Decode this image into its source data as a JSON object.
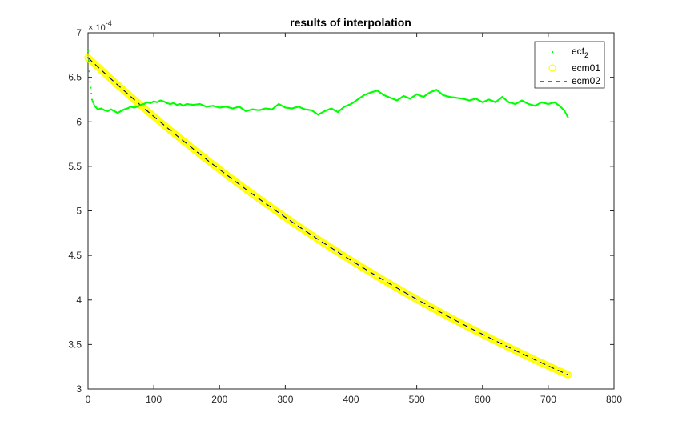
{
  "chart_data": {
    "type": "line",
    "title": "results of interpolation",
    "xlabel": "",
    "ylabel": "",
    "xlim": [
      0,
      800
    ],
    "ylim": [
      3,
      7
    ],
    "y_exponent_label": "× 10",
    "y_exponent_value": "-4",
    "x_ticks": [
      0,
      100,
      200,
      300,
      400,
      500,
      600,
      700,
      800
    ],
    "y_ticks": [
      3,
      3.5,
      4,
      4.5,
      5,
      5.5,
      6,
      6.5,
      7
    ],
    "grid": false,
    "legend_position": "top-right",
    "series": [
      {
        "name": "ecf",
        "name_subscript": "2",
        "style": "dots",
        "color": "#00ff00",
        "x": [
          0,
          3,
          6,
          10,
          15,
          20,
          25,
          30,
          35,
          40,
          45,
          50,
          55,
          60,
          65,
          70,
          75,
          80,
          85,
          90,
          95,
          100,
          105,
          110,
          115,
          120,
          125,
          130,
          135,
          140,
          145,
          150,
          160,
          170,
          180,
          190,
          200,
          210,
          220,
          230,
          240,
          250,
          260,
          270,
          280,
          290,
          300,
          310,
          320,
          330,
          340,
          350,
          360,
          370,
          380,
          390,
          400,
          410,
          420,
          430,
          440,
          450,
          460,
          470,
          480,
          490,
          500,
          510,
          520,
          530,
          540,
          550,
          560,
          570,
          580,
          590,
          600,
          610,
          620,
          630,
          640,
          650,
          660,
          670,
          680,
          690,
          700,
          710,
          720,
          725,
          730
        ],
        "y": [
          6.8,
          6.45,
          6.25,
          6.18,
          6.14,
          6.15,
          6.13,
          6.12,
          6.14,
          6.12,
          6.1,
          6.12,
          6.14,
          6.15,
          6.17,
          6.16,
          6.17,
          6.19,
          6.2,
          6.22,
          6.21,
          6.23,
          6.22,
          6.24,
          6.23,
          6.21,
          6.2,
          6.21,
          6.19,
          6.2,
          6.18,
          6.2,
          6.19,
          6.2,
          6.17,
          6.18,
          6.16,
          6.17,
          6.15,
          6.17,
          6.12,
          6.14,
          6.13,
          6.15,
          6.14,
          6.2,
          6.16,
          6.15,
          6.17,
          6.14,
          6.13,
          6.08,
          6.12,
          6.15,
          6.11,
          6.17,
          6.2,
          6.25,
          6.3,
          6.33,
          6.35,
          6.3,
          6.27,
          6.24,
          6.29,
          6.26,
          6.31,
          6.28,
          6.33,
          6.36,
          6.3,
          6.28,
          6.27,
          6.26,
          6.24,
          6.26,
          6.22,
          6.25,
          6.22,
          6.28,
          6.22,
          6.2,
          6.24,
          6.2,
          6.18,
          6.22,
          6.2,
          6.22,
          6.16,
          6.12,
          6.05
        ]
      },
      {
        "name": "ecm01",
        "style": "circles",
        "color": "#ffff00",
        "x_start": 0,
        "x_end": 730,
        "y_start": 6.72,
        "y_end": 3.16,
        "decay": "exponential"
      },
      {
        "name": "ecm02",
        "style": "dashed",
        "color": "#000080",
        "x_start": 0,
        "x_end": 730,
        "y_start": 6.72,
        "y_end": 3.16,
        "decay": "exponential"
      }
    ]
  }
}
